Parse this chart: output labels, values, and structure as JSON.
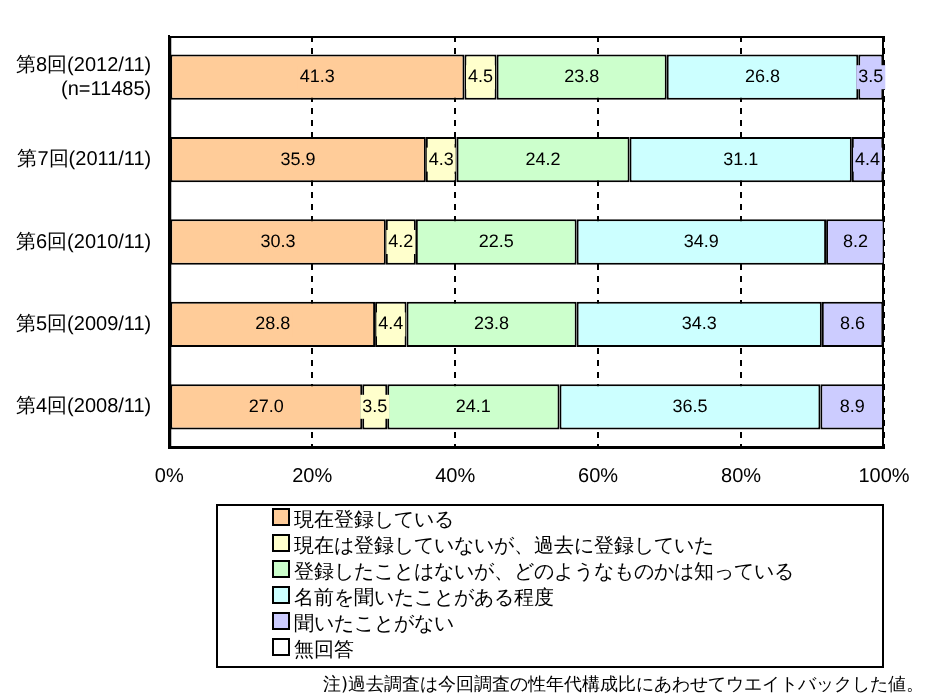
{
  "chart_data": {
    "type": "bar",
    "orientation": "horizontal",
    "stacked": true,
    "categories": [
      "第8回(2012/11)\n(n=11485)",
      "第7回(2011/11)",
      "第6回(2010/11)",
      "第5回(2009/11)",
      "第4回(2008/11)"
    ],
    "series": [
      {
        "name": "現在登録している",
        "color": "#ffcc99",
        "values": [
          41.3,
          35.9,
          30.3,
          28.8,
          27.0
        ],
        "value_labels": [
          "41.3",
          "35.9",
          "30.3",
          "28.8",
          "27.0"
        ]
      },
      {
        "name": "現在は登録していないが、過去に登録していた",
        "color": "#ffffcc",
        "values": [
          4.5,
          4.3,
          4.2,
          4.4,
          3.5
        ],
        "value_labels": [
          "4.5",
          "4.3",
          "4.2",
          "4.4",
          "3.5"
        ]
      },
      {
        "name": "登録したことはないが、どのようなものかは知っている",
        "color": "#ccffcc",
        "values": [
          23.8,
          24.2,
          22.5,
          23.8,
          24.1
        ],
        "value_labels": [
          "23.8",
          "24.2",
          "22.5",
          "23.8",
          "24.1"
        ]
      },
      {
        "name": "名前を聞いたことがある程度",
        "color": "#ccffff",
        "values": [
          26.8,
          31.1,
          34.9,
          34.3,
          36.5
        ],
        "value_labels": [
          "26.8",
          "31.1",
          "34.9",
          "34.3",
          "36.5"
        ]
      },
      {
        "name": "聞いたことがない",
        "color": "#ccccff",
        "values": [
          3.5,
          4.4,
          8.2,
          8.6,
          8.9
        ],
        "value_labels": [
          "3.5",
          "4.4",
          "8.2",
          "8.6",
          "8.9"
        ]
      },
      {
        "name": "無回答",
        "color": "#ffffff",
        "values": [
          null,
          null,
          null,
          null,
          null
        ]
      }
    ],
    "xlim": [
      0,
      100
    ],
    "xticks": [
      {
        "value": 0,
        "label": "0%"
      },
      {
        "value": 20,
        "label": "20%"
      },
      {
        "value": 40,
        "label": "40%"
      },
      {
        "value": 60,
        "label": "60%"
      },
      {
        "value": 80,
        "label": "80%"
      },
      {
        "value": 100,
        "label": "100%"
      }
    ],
    "grid": "x",
    "legend": "bottom",
    "annotations": [
      "注)過去調査は今回調査の性年代構成比にあわせてウエイトバックした値。"
    ]
  }
}
